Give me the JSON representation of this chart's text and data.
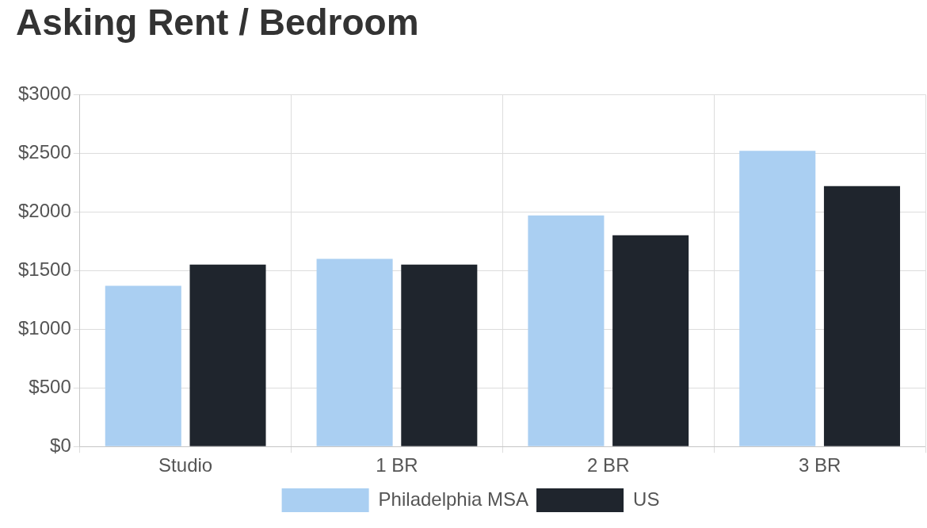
{
  "chart_data": {
    "type": "bar",
    "title": "Asking Rent / Bedroom",
    "categories": [
      "Studio",
      "1 BR",
      "2 BR",
      "3 BR"
    ],
    "series": [
      {
        "name": "Philadelphia MSA",
        "color": "#aacff2",
        "values": [
          1370,
          1600,
          1970,
          2520
        ]
      },
      {
        "name": "US",
        "color": "#1f252d",
        "values": [
          1550,
          1550,
          1800,
          2220
        ]
      }
    ],
    "ylim": [
      0,
      3000
    ],
    "yticks": [
      {
        "value": 0,
        "label": "$0"
      },
      {
        "value": 500,
        "label": "$500"
      },
      {
        "value": 1000,
        "label": "$1000"
      },
      {
        "value": 1500,
        "label": "$1500"
      },
      {
        "value": 2000,
        "label": "$2000"
      },
      {
        "value": 2500,
        "label": "$2500"
      },
      {
        "value": 3000,
        "label": "$3000"
      }
    ],
    "grid": true,
    "legend": "bottom"
  }
}
